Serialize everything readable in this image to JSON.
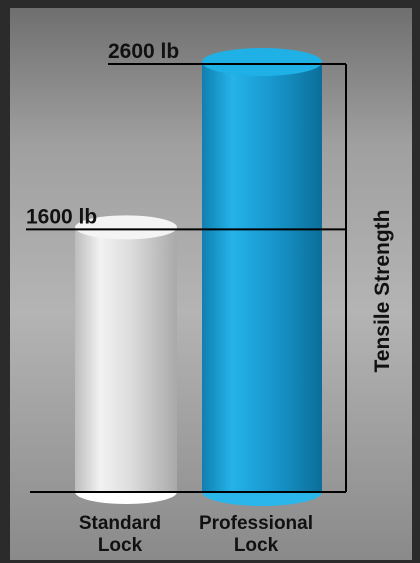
{
  "chart_data": {
    "type": "bar",
    "style": "3d-cylinder",
    "categories": [
      "Standard Lock",
      "Professional Lock"
    ],
    "category_label_lines": [
      [
        "Standard",
        "Lock"
      ],
      [
        "Professional",
        "Lock"
      ]
    ],
    "values": [
      1600,
      2600
    ],
    "value_labels": [
      "1600 lb",
      "2600 lb"
    ],
    "unit": "lb",
    "ylabel": "Tensile Strength",
    "ylim": [
      0,
      2600
    ],
    "grid": false,
    "legend": "none",
    "colors": {
      "standard": "#e6e6e6",
      "professional": "#1aa3d9",
      "frame_outer": "#2b2b2b",
      "panel": "#a8a8a8",
      "text": "#111111"
    }
  }
}
